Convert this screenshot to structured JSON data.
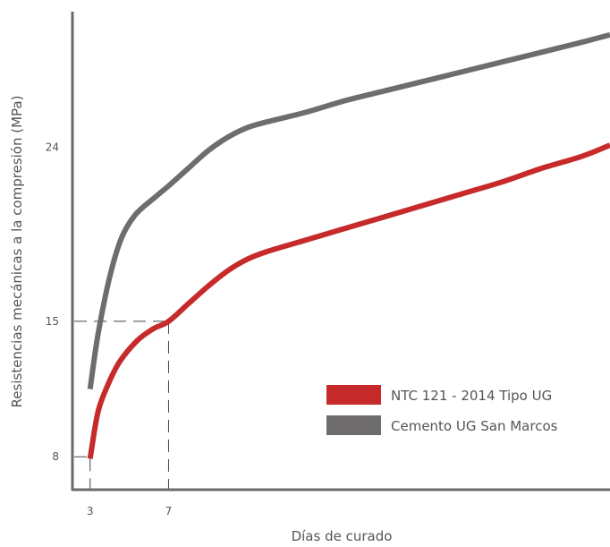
{
  "chart_data": {
    "type": "line",
    "xlabel": "Días de curado",
    "ylabel": "Resistencias mecánicas a la compresión (MPa)",
    "x_ticks": [
      {
        "value": 3,
        "label": "3"
      },
      {
        "value": 7,
        "label": "7"
      }
    ],
    "y_ticks": [
      {
        "value": 8,
        "label": "8"
      },
      {
        "value": 15,
        "label": "15"
      },
      {
        "value": 24,
        "label": "24"
      }
    ],
    "xlim": [
      2.1,
      29.5
    ],
    "ylim": [
      6.3,
      31.6
    ],
    "reference_lines": [
      {
        "axis": "y",
        "value": 15,
        "label": "15"
      },
      {
        "axis": "x",
        "value": 7,
        "label": "7"
      },
      {
        "axis": "x",
        "value": 3,
        "label": "3"
      },
      {
        "axis": "y",
        "value": 8,
        "label": "8"
      }
    ],
    "legend_position": "bottom-right",
    "series": [
      {
        "name": "NTC 121 - 2014 Tipo UG",
        "color": "#c62a2a",
        "points": [
          [
            3,
            7.9
          ],
          [
            3.4,
            10.3
          ],
          [
            3.9,
            11.7
          ],
          [
            4.5,
            12.9
          ],
          [
            5.4,
            14.0
          ],
          [
            6.2,
            14.6
          ],
          [
            7,
            15.0
          ],
          [
            8,
            15.9
          ],
          [
            9,
            16.8
          ],
          [
            10,
            17.6
          ],
          [
            11,
            18.2
          ],
          [
            12,
            18.6
          ],
          [
            14,
            19.2
          ],
          [
            16,
            19.8
          ],
          [
            18,
            20.4
          ],
          [
            20,
            21.0
          ],
          [
            22,
            21.6
          ],
          [
            24,
            22.2
          ],
          [
            26,
            22.9
          ],
          [
            28,
            23.5
          ],
          [
            29.5,
            24.1
          ]
        ]
      },
      {
        "name": "Cemento UG San Marcos",
        "color": "#6e6c6c",
        "points": [
          [
            3,
            11.5
          ],
          [
            3.4,
            14.3
          ],
          [
            4,
            17.3
          ],
          [
            4.6,
            19.3
          ],
          [
            5.3,
            20.5
          ],
          [
            6.3,
            21.4
          ],
          [
            7,
            22.0
          ],
          [
            8,
            22.9
          ],
          [
            9,
            23.8
          ],
          [
            10,
            24.5
          ],
          [
            11,
            25.0
          ],
          [
            12,
            25.3
          ],
          [
            14,
            25.8
          ],
          [
            16,
            26.4
          ],
          [
            18,
            26.9
          ],
          [
            20,
            27.4
          ],
          [
            22,
            27.9
          ],
          [
            24,
            28.4
          ],
          [
            26,
            28.9
          ],
          [
            28,
            29.4
          ],
          [
            29.5,
            29.8
          ]
        ]
      }
    ]
  }
}
